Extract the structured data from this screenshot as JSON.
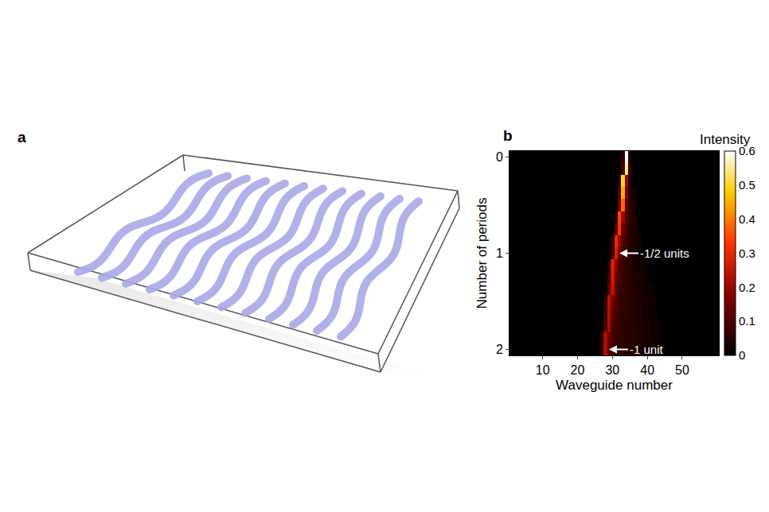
{
  "panel_labels": [
    "a",
    "b"
  ],
  "chart_data": {
    "type": "heatmap",
    "x_label": "Waveguide number",
    "y_label": "Number of periods",
    "x": [
      20,
      21,
      22,
      23,
      24,
      25,
      26,
      27,
      28,
      29,
      30,
      31,
      32,
      33,
      34,
      35,
      36,
      37,
      38,
      39,
      40,
      41,
      42,
      43,
      44,
      45
    ],
    "y": [
      0,
      0.125,
      0.25,
      0.375,
      0.5,
      0.625,
      0.75,
      0.875,
      1,
      1.125,
      1.25,
      1.375,
      1.5,
      1.625,
      1.75,
      1.875,
      2
    ],
    "z": [
      [
        0,
        0,
        0,
        0,
        0,
        0,
        0,
        0,
        0,
        0,
        0,
        0,
        0,
        0.05,
        0.6,
        0.05,
        0,
        0,
        0,
        0,
        0,
        0,
        0,
        0,
        0,
        0
      ],
      [
        0,
        0,
        0,
        0,
        0,
        0,
        0,
        0,
        0,
        0,
        0,
        0,
        0,
        0.1,
        0.55,
        0.08,
        0,
        0,
        0,
        0,
        0,
        0,
        0,
        0,
        0,
        0
      ],
      [
        0,
        0,
        0,
        0,
        0,
        0,
        0,
        0,
        0,
        0,
        0,
        0,
        0.05,
        0.5,
        0.2,
        0.05,
        0,
        0,
        0,
        0,
        0,
        0,
        0,
        0,
        0,
        0
      ],
      [
        0,
        0,
        0,
        0,
        0,
        0,
        0,
        0,
        0,
        0,
        0,
        0,
        0.1,
        0.45,
        0.15,
        0.05,
        0.03,
        0,
        0,
        0,
        0,
        0,
        0,
        0,
        0,
        0
      ],
      [
        0,
        0,
        0,
        0,
        0,
        0,
        0,
        0,
        0,
        0,
        0,
        0,
        0.15,
        0.38,
        0.12,
        0.06,
        0.04,
        0,
        0,
        0,
        0,
        0,
        0,
        0,
        0,
        0
      ],
      [
        0,
        0,
        0,
        0,
        0,
        0,
        0,
        0,
        0,
        0,
        0,
        0.05,
        0.35,
        0.2,
        0.1,
        0.06,
        0.04,
        0.02,
        0,
        0,
        0,
        0,
        0,
        0,
        0,
        0
      ],
      [
        0,
        0,
        0,
        0,
        0,
        0,
        0,
        0,
        0,
        0,
        0,
        0.12,
        0.33,
        0.14,
        0.08,
        0.05,
        0.04,
        0.03,
        0,
        0,
        0,
        0,
        0,
        0,
        0,
        0
      ],
      [
        0,
        0,
        0,
        0,
        0,
        0,
        0,
        0,
        0,
        0,
        0.06,
        0.3,
        0.2,
        0.1,
        0.07,
        0.05,
        0.04,
        0.03,
        0.02,
        0,
        0,
        0,
        0,
        0,
        0,
        0
      ],
      [
        0,
        0,
        0,
        0,
        0,
        0,
        0,
        0,
        0,
        0,
        0.08,
        0.28,
        0.15,
        0.08,
        0.06,
        0.05,
        0.04,
        0.03,
        0.02,
        0,
        0,
        0,
        0,
        0,
        0,
        0
      ],
      [
        0,
        0,
        0,
        0,
        0,
        0,
        0,
        0,
        0,
        0.05,
        0.27,
        0.18,
        0.1,
        0.07,
        0.06,
        0.05,
        0.04,
        0.03,
        0.03,
        0.02,
        0,
        0,
        0,
        0,
        0,
        0
      ],
      [
        0,
        0,
        0,
        0,
        0,
        0,
        0,
        0,
        0,
        0.07,
        0.26,
        0.14,
        0.09,
        0.07,
        0.06,
        0.05,
        0.04,
        0.04,
        0.03,
        0.02,
        0.02,
        0,
        0,
        0,
        0,
        0
      ],
      [
        0,
        0,
        0,
        0,
        0,
        0,
        0,
        0,
        0,
        0.12,
        0.24,
        0.12,
        0.08,
        0.07,
        0.06,
        0.05,
        0.05,
        0.04,
        0.03,
        0.03,
        0.02,
        0.02,
        0,
        0,
        0,
        0
      ],
      [
        0,
        0,
        0,
        0,
        0,
        0,
        0,
        0,
        0.05,
        0.24,
        0.16,
        0.1,
        0.07,
        0.06,
        0.06,
        0.05,
        0.05,
        0.04,
        0.04,
        0.03,
        0.03,
        0.02,
        0.02,
        0,
        0,
        0
      ],
      [
        0,
        0,
        0,
        0,
        0,
        0,
        0,
        0,
        0.07,
        0.23,
        0.12,
        0.09,
        0.07,
        0.06,
        0.06,
        0.05,
        0.05,
        0.04,
        0.04,
        0.03,
        0.03,
        0.02,
        0.02,
        0.01,
        0,
        0
      ],
      [
        0,
        0,
        0,
        0,
        0,
        0,
        0,
        0,
        0.1,
        0.22,
        0.1,
        0.08,
        0.07,
        0.06,
        0.05,
        0.05,
        0.05,
        0.04,
        0.04,
        0.03,
        0.03,
        0.03,
        0.02,
        0.02,
        0,
        0
      ],
      [
        0,
        0,
        0,
        0,
        0,
        0,
        0,
        0.05,
        0.22,
        0.14,
        0.09,
        0.07,
        0.06,
        0.06,
        0.05,
        0.05,
        0.05,
        0.04,
        0.04,
        0.03,
        0.03,
        0.03,
        0.02,
        0.02,
        0.01,
        0
      ],
      [
        0,
        0,
        0,
        0,
        0,
        0,
        0,
        0.06,
        0.22,
        0.12,
        0.08,
        0.07,
        0.06,
        0.06,
        0.05,
        0.05,
        0.04,
        0.04,
        0.04,
        0.03,
        0.03,
        0.03,
        0.02,
        0.02,
        0.02,
        0.01
      ]
    ],
    "xlim": [
      0.5,
      60.5
    ],
    "xticks": [
      10,
      20,
      30,
      40,
      50
    ],
    "ylim": [
      2.0625,
      -0.0625
    ],
    "yticks": [
      0,
      1,
      2
    ],
    "colorbar": {
      "title": "Intensity",
      "range": [
        0,
        0.6
      ],
      "ticks": [
        0,
        0.1,
        0.2,
        0.3,
        0.4,
        0.5,
        0.6
      ]
    },
    "annotations": [
      {
        "text": "-1/2 units",
        "x": 32,
        "y": 1
      },
      {
        "text": "-1 unit",
        "x": 29,
        "y": 2
      }
    ]
  }
}
